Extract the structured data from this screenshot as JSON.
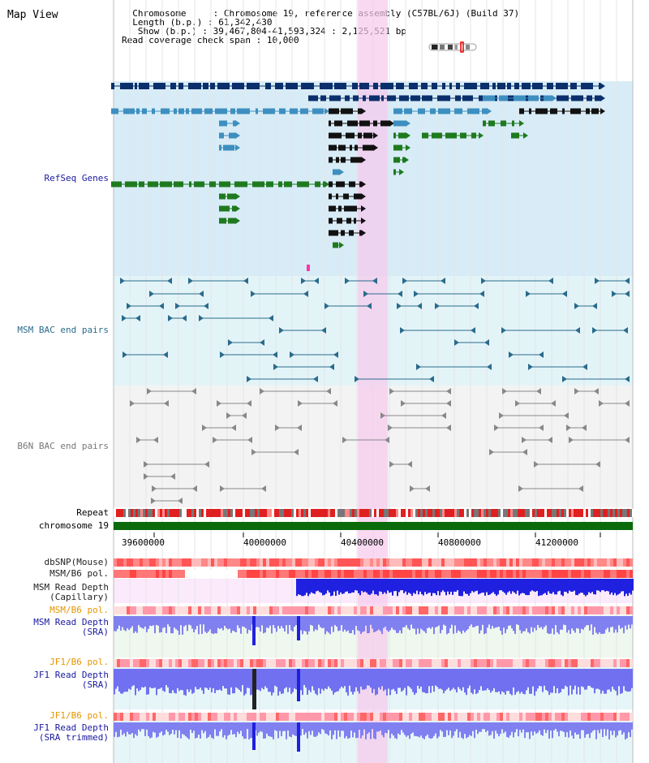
{
  "title": "Map View",
  "info": {
    "chromosome_key": "Chromosome",
    "chromosome_val": "Chromosome 19, reference assembly (C57BL/6J) (Build 37)",
    "length_key": "Length (b.p.)",
    "length_val": "61,342,430",
    "show_key": "Show (b.p.)",
    "show_val": "39,467,804-41,593,324 : 2,125,521 bp",
    "span_key": "Read coverage check span",
    "span_val": "10,000"
  },
  "tracks": {
    "refseq": "RefSeq Genes",
    "msm_bac": "MSM BAC end pairs",
    "b6n_bac": "B6N BAC end pairs",
    "repeat": "Repeat",
    "chromosome": "chromosome 19",
    "dbsnp": "dbSNP(Mouse)",
    "msm_b6_pol1": "MSM/B6 pol.",
    "msm_depth_cap_1": "MSM Read Depth",
    "msm_depth_cap_2": "(Capillary)",
    "msm_b6_pol2": "MSM/B6 pol.",
    "msm_depth_sra_1": "MSM Read Depth",
    "msm_depth_sra_2": "(SRA)",
    "jf1_b6_pol1": "JF1/B6 pol.",
    "jf1_depth_sra_1": "JF1 Read Depth",
    "jf1_depth_sra_2": "(SRA)",
    "jf1_b6_pol2": "JF1/B6 pol.",
    "jf1_depth_trim_1": "JF1 Read Depth",
    "jf1_depth_trim_2": "(SRA trimmed)"
  },
  "axis_ticks": [
    "39600000",
    "40000000",
    "40400000",
    "40800000",
    "41200000"
  ],
  "colors": {
    "navy": "#0a2f6b",
    "gene_blue": "#3e8fc0",
    "gene_green": "#1f7a1f",
    "refseq_bg": "#d7ecf7",
    "msm_bg": "#e3f4f8",
    "b6n_bg": "#f3f3f3",
    "highlight": "#f6c9ec",
    "label_blue": "#1a1aa0",
    "label_orange": "#e69500",
    "label_teal": "#2a6b8c"
  }
}
